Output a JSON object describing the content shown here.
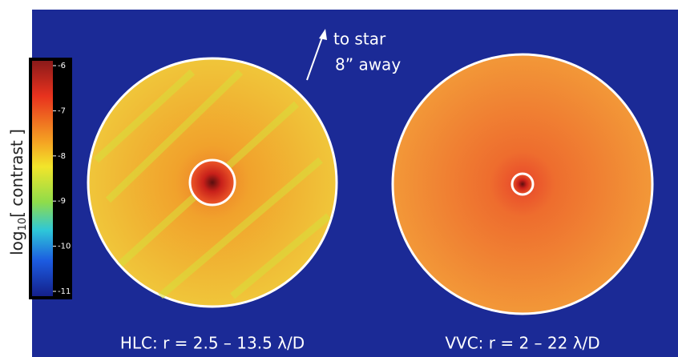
{
  "colorbar": {
    "label": {
      "base": "log",
      "subscript": "10",
      "rest": "[ contrast ]"
    },
    "ticks": [
      -6,
      -7,
      -8,
      -9,
      -10,
      -11
    ]
  },
  "annotation": {
    "line1": "to star",
    "line2": "8” away"
  },
  "panels": [
    {
      "caption": "HLC: r = 2.5 – 13.5 λ/D"
    },
    {
      "caption": "VVC: r = 2 – 22 λ/D"
    }
  ]
}
